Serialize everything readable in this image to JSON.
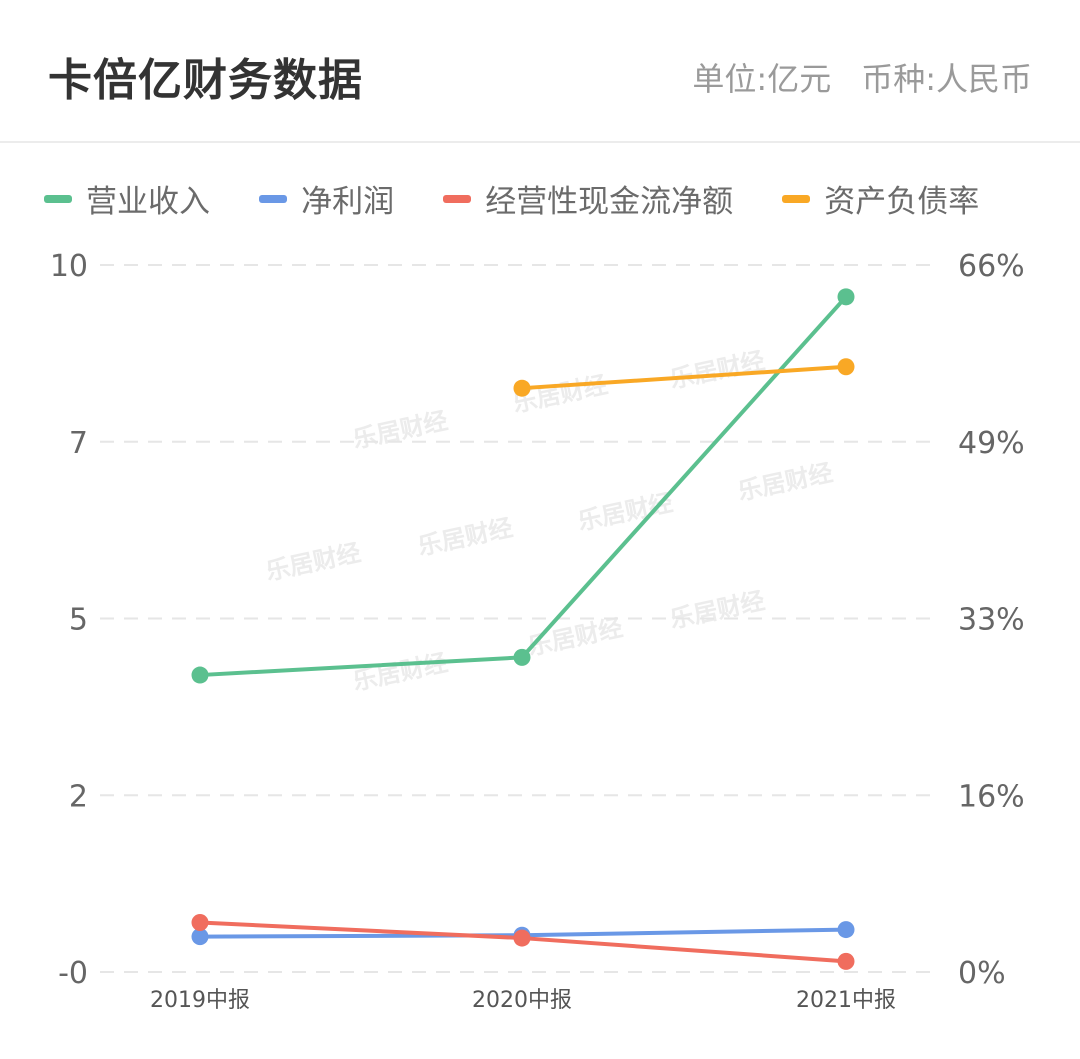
{
  "header": {
    "title": "卡倍亿财务数据",
    "unit": "单位:亿元",
    "currency": "币种:人民币"
  },
  "watermark": "乐居财经",
  "chart_data": {
    "type": "line",
    "categories": [
      "2019中报",
      "2020中报",
      "2021中报"
    ],
    "left_axis": {
      "ticks": [
        "10",
        "7",
        "5",
        "2",
        "-0"
      ],
      "ylim": [
        0,
        10
      ]
    },
    "right_axis": {
      "ticks": [
        "66%",
        "49%",
        "33%",
        "16%",
        "0%"
      ],
      "ylim": [
        0,
        66
      ]
    },
    "grid": true,
    "legend_placement": "top",
    "series": [
      {
        "name": "营业收入",
        "axis": "left",
        "color": "#5bc08f",
        "values": [
          4.2,
          4.45,
          9.55
        ]
      },
      {
        "name": "净利润",
        "axis": "left",
        "color": "#6a98e6",
        "values": [
          0.5,
          0.52,
          0.6
        ]
      },
      {
        "name": "经营性现金流净额",
        "axis": "left",
        "color": "#f06d5e",
        "values": [
          0.7,
          0.48,
          0.15
        ]
      },
      {
        "name": "资产负债率",
        "axis": "right",
        "color": "#f9a825",
        "values": [
          null,
          54.5,
          56.5
        ]
      }
    ]
  }
}
